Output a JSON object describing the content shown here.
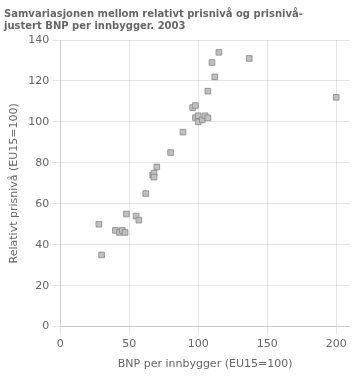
{
  "chart_data": {
    "type": "scatter",
    "title": [
      "Samvariasjonen mellom relativt prisnivå og prisnivå-",
      "justert BNP per innbygger. 2003"
    ],
    "xlabel": "BNP per innbygger (EU15=100)",
    "ylabel": "Relativt prisnivå (EU15=100)",
    "x": [
      28,
      30,
      40,
      43,
      45,
      47,
      48,
      55,
      57,
      62,
      67,
      68,
      68,
      70,
      80,
      89,
      96,
      98,
      98,
      100,
      100,
      103,
      105,
      107,
      107,
      110,
      112,
      115,
      137,
      200
    ],
    "values": [
      50,
      35,
      47,
      46,
      47,
      46,
      55,
      54,
      52,
      65,
      74,
      75,
      73,
      78,
      85,
      95,
      107,
      108,
      102,
      103,
      100,
      101,
      103,
      102,
      115,
      129,
      122,
      134,
      131,
      112
    ],
    "color": "#c0c0c0",
    "marker": "square",
    "xlim": [
      0,
      210
    ],
    "ylim": [
      0,
      140
    ],
    "xticks": [
      0,
      50,
      100,
      150,
      200
    ],
    "yticks": [
      0,
      20,
      40,
      60,
      80,
      100,
      120,
      140
    ],
    "grid": true
  }
}
